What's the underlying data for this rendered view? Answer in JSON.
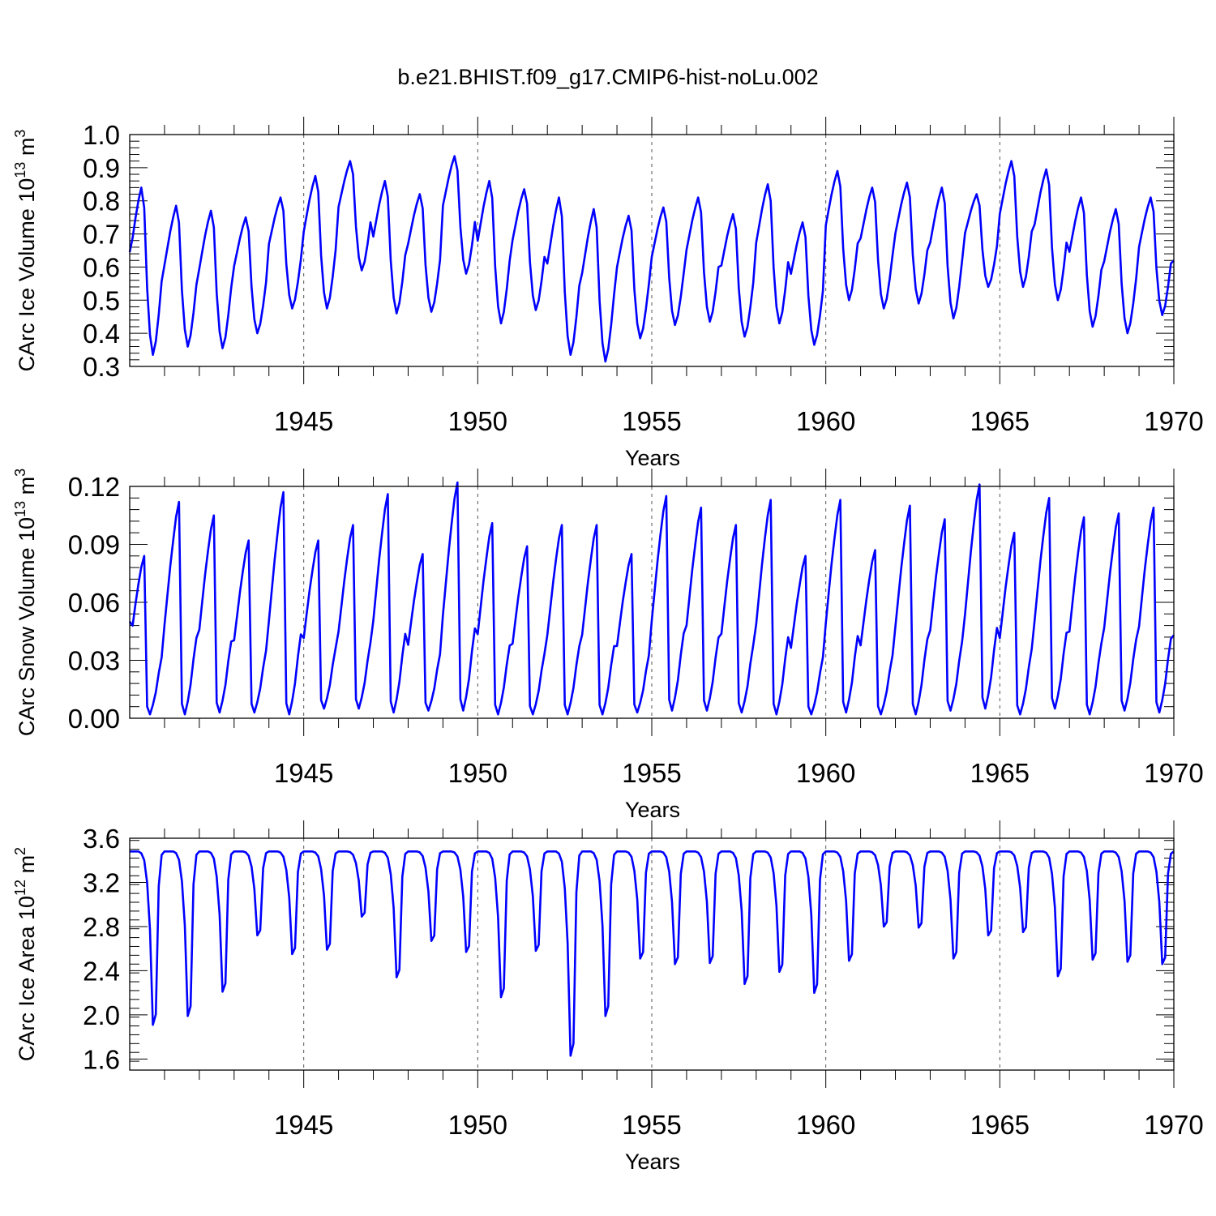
{
  "title": "b.e21.BHIST.f09_g17.CMIP6-hist-noLu.002",
  "colors": {
    "series": "#0000ff",
    "axis": "#000000",
    "refline": "#555555"
  },
  "chart_data": [
    {
      "type": "line",
      "name": "ice-volume",
      "ylabel_main": "CArc Ice Volume 10",
      "ylabel_exp": "13",
      "ylabel_unit": " m",
      "ylabel_unit_exp": "3",
      "xlabel": "Years",
      "xlim": [
        1940,
        1970
      ],
      "ylim": [
        0.3,
        1.0
      ],
      "yticks": [
        0.3,
        0.4,
        0.5,
        0.6,
        0.7,
        0.8,
        0.9,
        1.0
      ],
      "ytick_labels": [
        "0.3",
        "0.4",
        "0.5",
        "0.6",
        "0.7",
        "0.8",
        "0.9",
        "1.0"
      ],
      "xticks": [
        1945,
        1950,
        1955,
        1960,
        1965,
        1970
      ],
      "xtick_labels": [
        "1945",
        "1950",
        "1955",
        "1960",
        "1965",
        "1970"
      ],
      "yearly_max": [
        0.84,
        0.785,
        0.77,
        0.75,
        0.81,
        0.875,
        0.92,
        0.86,
        0.82,
        0.935,
        0.86,
        0.835,
        0.81,
        0.775,
        0.755,
        0.78,
        0.81,
        0.76,
        0.85,
        0.735,
        0.89,
        0.84,
        0.855,
        0.84,
        0.82,
        0.92,
        0.895,
        0.81,
        0.775,
        0.81
      ],
      "yearly_min": [
        0.335,
        0.36,
        0.355,
        0.4,
        0.475,
        0.475,
        0.59,
        0.46,
        0.465,
        0.58,
        0.43,
        0.47,
        0.335,
        0.315,
        0.385,
        0.425,
        0.435,
        0.39,
        0.43,
        0.365,
        0.5,
        0.475,
        0.49,
        0.445,
        0.54,
        0.54,
        0.5,
        0.42,
        0.4,
        0.455
      ],
      "start_value": 0.645,
      "end_value": 0.62
    },
    {
      "type": "line",
      "name": "snow-volume",
      "ylabel_main": "CArc Snow Volume 10",
      "ylabel_exp": "13",
      "ylabel_unit": " m",
      "ylabel_unit_exp": "3",
      "xlabel": "Years",
      "xlim": [
        1940,
        1970
      ],
      "ylim": [
        0.0,
        0.12
      ],
      "yticks": [
        0.0,
        0.03,
        0.06,
        0.09,
        0.12
      ],
      "ytick_labels": [
        "0.00",
        "0.03",
        "0.06",
        "0.09",
        "0.12"
      ],
      "xticks": [
        1945,
        1950,
        1955,
        1960,
        1965,
        1970
      ],
      "xtick_labels": [
        "1945",
        "1950",
        "1955",
        "1960",
        "1965",
        "1970"
      ],
      "yearly_max": [
        0.084,
        0.112,
        0.105,
        0.092,
        0.117,
        0.092,
        0.1,
        0.116,
        0.085,
        0.122,
        0.101,
        0.089,
        0.1,
        0.1,
        0.085,
        0.115,
        0.109,
        0.1,
        0.113,
        0.084,
        0.113,
        0.087,
        0.11,
        0.103,
        0.121,
        0.096,
        0.114,
        0.104,
        0.106,
        0.109
      ],
      "yearly_min": [
        0.002,
        0.002,
        0.003,
        0.003,
        0.002,
        0.005,
        0.005,
        0.003,
        0.004,
        0.004,
        0.002,
        0.002,
        0.002,
        0.002,
        0.003,
        0.004,
        0.004,
        0.003,
        0.002,
        0.002,
        0.003,
        0.002,
        0.002,
        0.004,
        0.005,
        0.002,
        0.005,
        0.002,
        0.004,
        0.003
      ],
      "start_value": 0.05,
      "end_value": 0.043
    },
    {
      "type": "line",
      "name": "ice-area",
      "ylabel_main": "CArc Ice Area 10",
      "ylabel_exp": "12",
      "ylabel_unit": " m",
      "ylabel_unit_exp": "2",
      "xlabel": "Years",
      "xlim": [
        1940,
        1970
      ],
      "ylim": [
        1.5,
        3.6
      ],
      "yticks": [
        1.6,
        2.0,
        2.4,
        2.8,
        3.2,
        3.6
      ],
      "ytick_labels": [
        "1.6",
        "2.0",
        "2.4",
        "2.8",
        "3.2",
        "3.6"
      ],
      "xticks": [
        1945,
        1950,
        1955,
        1960,
        1965,
        1970
      ],
      "xtick_labels": [
        "1945",
        "1950",
        "1955",
        "1960",
        "1965",
        "1970"
      ],
      "yearly_max": [
        3.48,
        3.48,
        3.48,
        3.48,
        3.48,
        3.48,
        3.48,
        3.48,
        3.48,
        3.48,
        3.48,
        3.48,
        3.48,
        3.48,
        3.48,
        3.48,
        3.48,
        3.48,
        3.48,
        3.48,
        3.48,
        3.48,
        3.48,
        3.48,
        3.48,
        3.48,
        3.48,
        3.48,
        3.48,
        3.48
      ],
      "yearly_min": [
        1.91,
        1.99,
        2.21,
        2.72,
        2.55,
        2.59,
        2.89,
        2.34,
        2.67,
        2.57,
        2.16,
        2.58,
        1.63,
        1.99,
        2.51,
        2.46,
        2.47,
        2.28,
        2.39,
        2.2,
        2.49,
        2.8,
        2.79,
        2.51,
        2.72,
        2.75,
        2.35,
        2.5,
        2.48,
        2.46
      ],
      "start_value": 3.48,
      "end_value": 3.48
    }
  ]
}
